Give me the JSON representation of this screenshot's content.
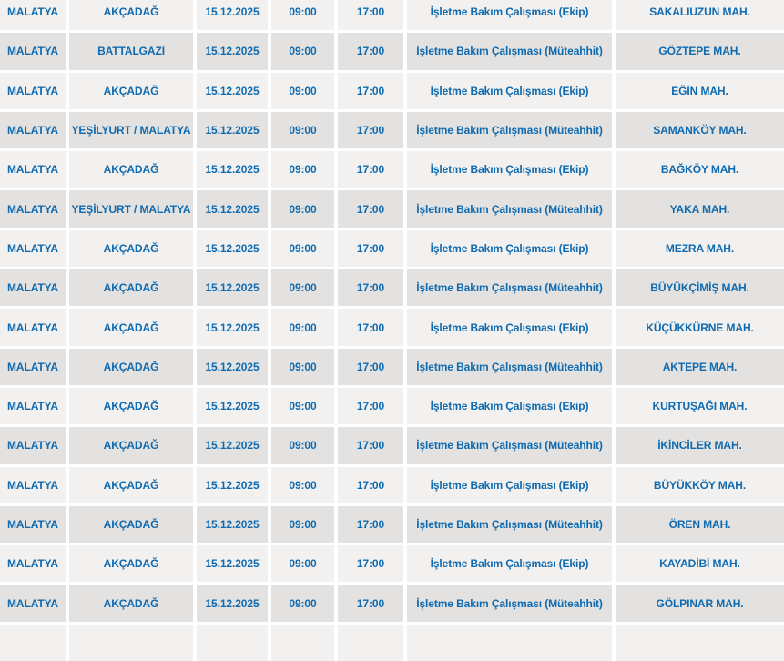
{
  "colors": {
    "row_light": "#f2f1ef",
    "row_dark": "#e3e2e0",
    "separator": "#ffffff",
    "text": "#0f6ab0"
  },
  "table": {
    "rows": [
      [
        "MALATYA",
        "AKÇADAĞ",
        "15.12.2025",
        "09:00",
        "17:00",
        "İşletme Bakım Çalışması (Ekip)",
        "SAKALIUZUN MAH."
      ],
      [
        "MALATYA",
        "BATTALGAZİ",
        "15.12.2025",
        "09:00",
        "17:00",
        "İşletme Bakım Çalışması (Müteahhit)",
        "GÖZTEPE MAH."
      ],
      [
        "MALATYA",
        "AKÇADAĞ",
        "15.12.2025",
        "09:00",
        "17:00",
        "İşletme Bakım Çalışması (Ekip)",
        "EĞİN MAH."
      ],
      [
        "MALATYA",
        "YEŞİLYURT / MALATYA",
        "15.12.2025",
        "09:00",
        "17:00",
        "İşletme Bakım Çalışması (Müteahhit)",
        "SAMANKÖY MAH."
      ],
      [
        "MALATYA",
        "AKÇADAĞ",
        "15.12.2025",
        "09:00",
        "17:00",
        "İşletme Bakım Çalışması (Ekip)",
        "BAĞKÖY MAH."
      ],
      [
        "MALATYA",
        "YEŞİLYURT / MALATYA",
        "15.12.2025",
        "09:00",
        "17:00",
        "İşletme Bakım Çalışması (Müteahhit)",
        "YAKA MAH."
      ],
      [
        "MALATYA",
        "AKÇADAĞ",
        "15.12.2025",
        "09:00",
        "17:00",
        "İşletme Bakım Çalışması (Ekip)",
        "MEZRA MAH."
      ],
      [
        "MALATYA",
        "AKÇADAĞ",
        "15.12.2025",
        "09:00",
        "17:00",
        "İşletme Bakım Çalışması (Müteahhit)",
        "BÜYÜKÇİMİŞ MAH."
      ],
      [
        "MALATYA",
        "AKÇADAĞ",
        "15.12.2025",
        "09:00",
        "17:00",
        "İşletme Bakım Çalışması (Ekip)",
        "KÜÇÜKKÜRNE MAH."
      ],
      [
        "MALATYA",
        "AKÇADAĞ",
        "15.12.2025",
        "09:00",
        "17:00",
        "İşletme Bakım Çalışması (Müteahhit)",
        "AKTEPE MAH."
      ],
      [
        "MALATYA",
        "AKÇADAĞ",
        "15.12.2025",
        "09:00",
        "17:00",
        "İşletme Bakım Çalışması (Ekip)",
        "KURTUŞAĞI MAH."
      ],
      [
        "MALATYA",
        "AKÇADAĞ",
        "15.12.2025",
        "09:00",
        "17:00",
        "İşletme Bakım Çalışması (Müteahhit)",
        "İKİNCİLER MAH."
      ],
      [
        "MALATYA",
        "AKÇADAĞ",
        "15.12.2025",
        "09:00",
        "17:00",
        "İşletme Bakım Çalışması (Ekip)",
        "BÜYÜKKÖY MAH."
      ],
      [
        "MALATYA",
        "AKÇADAĞ",
        "15.12.2025",
        "09:00",
        "17:00",
        "İşletme Bakım Çalışması (Müteahhit)",
        "ÖREN MAH."
      ],
      [
        "MALATYA",
        "AKÇADAĞ",
        "15.12.2025",
        "09:00",
        "17:00",
        "İşletme Bakım Çalışması (Ekip)",
        "KAYADİBİ MAH."
      ],
      [
        "MALATYA",
        "AKÇADAĞ",
        "15.12.2025",
        "09:00",
        "17:00",
        "İşletme Bakım Çalışması (Müteahhit)",
        "GÖLPINAR MAH."
      ]
    ]
  }
}
